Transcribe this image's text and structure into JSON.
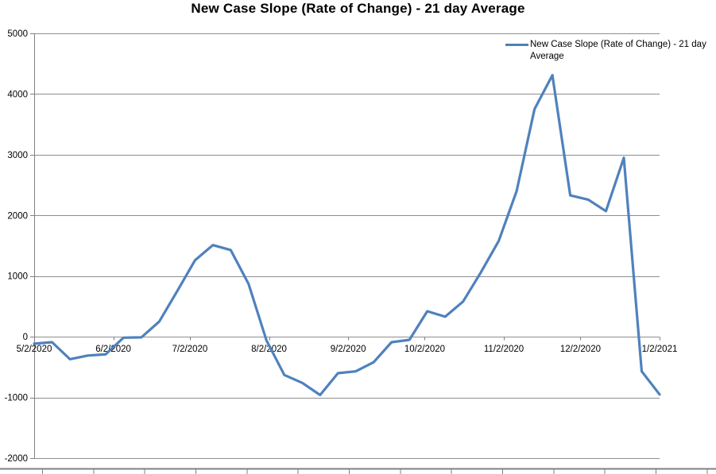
{
  "window": {
    "background": "#FFFFFF"
  },
  "chart": {
    "title": "New Case Slope (Rate of Change) - 21 day Average",
    "legend": {
      "label": "New Case Slope (Rate of Change) - 21 day Average",
      "swatch_color": "#4F81BD"
    }
  },
  "chart_data": {
    "type": "line",
    "title": "New Case Slope (Rate of Change) - 21 day Average",
    "xlabel": "",
    "ylabel": "",
    "ylim": [
      -2000,
      5000
    ],
    "y_ticks": [
      5000,
      4000,
      3000,
      2000,
      1000,
      0,
      -1000,
      -2000
    ],
    "x_tick_labels": [
      "5/2/2020",
      "6/2/2020",
      "7/2/2020",
      "8/2/2020",
      "9/2/2020",
      "10/2/2020",
      "11/2/2020",
      "12/2/2020",
      "1/2/2021"
    ],
    "grid": "horizontal",
    "legend_position": "top-right",
    "colors": {
      "line": "#4F81BD",
      "gridline": "#8E8E8E",
      "axis": "#7F7F7F",
      "sheet_edge": "#808080",
      "text": "#000000"
    },
    "series": [
      {
        "name": "New Case Slope (Rate of Change) - 21 day Average",
        "x": [
          "5/2/2020",
          "5/9/2020",
          "5/16/2020",
          "5/23/2020",
          "5/30/2020",
          "6/6/2020",
          "6/13/2020",
          "6/20/2020",
          "6/27/2020",
          "7/4/2020",
          "7/11/2020",
          "7/18/2020",
          "7/25/2020",
          "8/1/2020",
          "8/8/2020",
          "8/15/2020",
          "8/22/2020",
          "8/29/2020",
          "9/5/2020",
          "9/12/2020",
          "9/19/2020",
          "9/26/2020",
          "10/3/2020",
          "10/10/2020",
          "10/17/2020",
          "10/24/2020",
          "10/31/2020",
          "11/7/2020",
          "11/14/2020",
          "11/21/2020",
          "11/28/2020",
          "12/5/2020",
          "12/12/2020",
          "12/19/2020",
          "12/26/2020",
          "1/2/2021"
        ],
        "values": [
          -115,
          -90,
          -370,
          -310,
          -290,
          -15,
          -10,
          250,
          750,
          1260,
          1510,
          1430,
          870,
          -60,
          -630,
          -760,
          -960,
          -600,
          -570,
          -420,
          -90,
          -50,
          420,
          330,
          580,
          1060,
          1580,
          2400,
          3750,
          4310,
          2330,
          2260,
          2070,
          2950,
          -570,
          -950
        ]
      }
    ]
  }
}
